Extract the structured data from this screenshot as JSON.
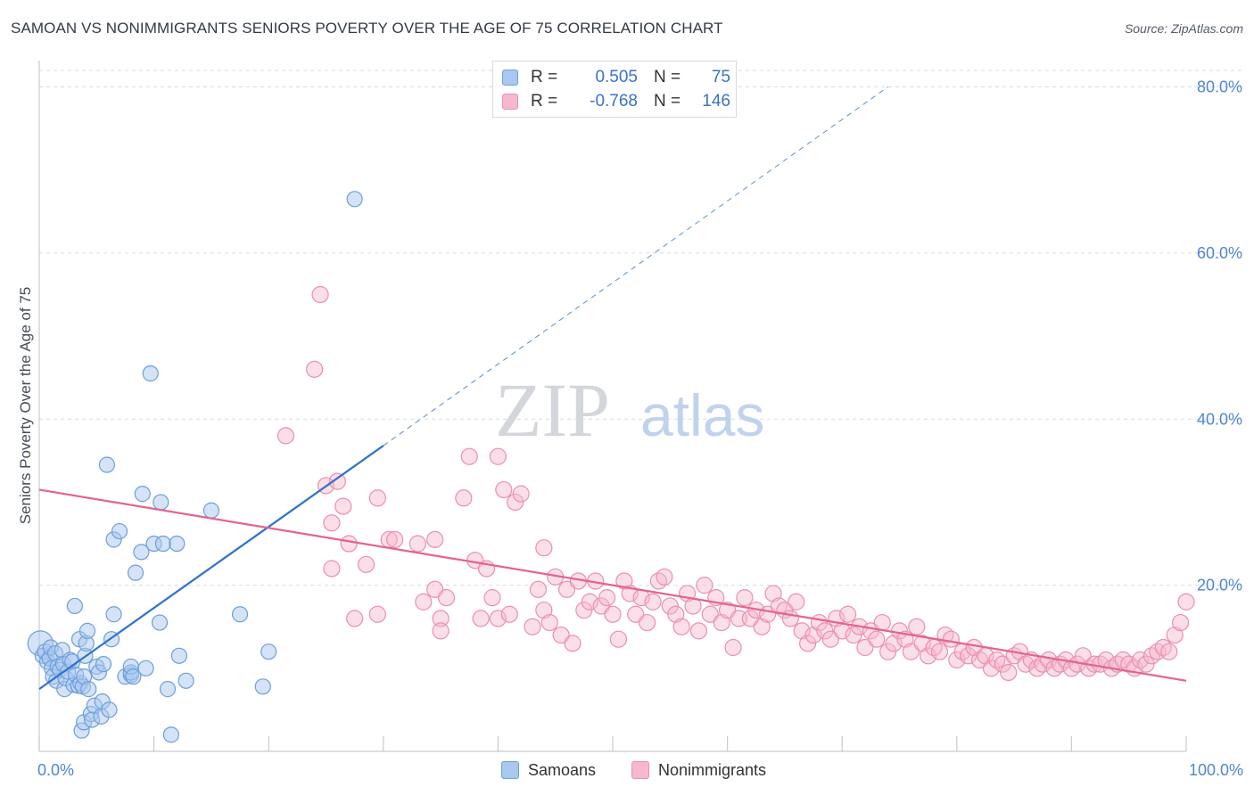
{
  "header": {
    "title": "SAMOAN VS NONIMMIGRANTS SENIORS POVERTY OVER THE AGE OF 75 CORRELATION CHART",
    "source": "Source: ZipAtlas.com"
  },
  "legend_top": {
    "rows": [
      {
        "r_label": "R =",
        "r_value": "0.505",
        "n_label": "N =",
        "n_value": "75"
      },
      {
        "r_label": "R =",
        "r_value": "-0.768",
        "n_label": "N =",
        "n_value": "146"
      }
    ]
  },
  "legend_bottom": {
    "items": [
      {
        "label": "Samoans"
      },
      {
        "label": "Nonimmigrants"
      }
    ]
  },
  "watermark": {
    "zip": "ZIP",
    "atlas": "atlas"
  },
  "colors": {
    "blue_fill": "#a9c8ee",
    "blue_stroke": "#6d9fdb",
    "blue_line": "#2f72cd",
    "pink_fill": "#f6b9cc",
    "pink_stroke": "#ec8fab",
    "pink_line": "#e4638f",
    "grid": "#d6dbe3",
    "tick_text": "#4f86cf"
  },
  "chart_data": {
    "type": "scatter",
    "ylabel": "Seniors Poverty Over the Age of 75",
    "xlim": [
      0,
      100
    ],
    "ylim": [
      0,
      80
    ],
    "x_ticks": [
      {
        "value": 0,
        "label": "0.0%"
      },
      {
        "value": 100,
        "label": "100.0%"
      }
    ],
    "y_ticks": [
      {
        "value": 20,
        "label": "20.0%"
      },
      {
        "value": 40,
        "label": "40.0%"
      },
      {
        "value": 60,
        "label": "60.0%"
      },
      {
        "value": 80,
        "label": "80.0%"
      }
    ],
    "grid": true,
    "legend_position": "top-center",
    "series": [
      {
        "name": "Samoans",
        "color": "#a9c8ee",
        "R": 0.505,
        "N": 75,
        "trend": {
          "x0": 0.0,
          "y0": 7.5,
          "x1": 30.0,
          "y1": 36.8,
          "dashed_to_x": 74.0,
          "dashed_to_y": 80.0
        },
        "points": [
          [
            0.1,
            13.0
          ],
          [
            0.3,
            11.5
          ],
          [
            0.5,
            12.0
          ],
          [
            0.7,
            10.8
          ],
          [
            0.9,
            11.2
          ],
          [
            1.0,
            12.5
          ],
          [
            1.1,
            10.0
          ],
          [
            1.2,
            9.0
          ],
          [
            1.4,
            11.8
          ],
          [
            1.5,
            8.5
          ],
          [
            1.6,
            10.2
          ],
          [
            1.8,
            9.8
          ],
          [
            2.0,
            12.2
          ],
          [
            2.1,
            10.5
          ],
          [
            2.2,
            7.5
          ],
          [
            2.3,
            8.8
          ],
          [
            2.5,
            9.6
          ],
          [
            2.7,
            11.0
          ],
          [
            2.9,
            10.8
          ],
          [
            3.0,
            8.0
          ],
          [
            3.2,
            9.2
          ],
          [
            3.4,
            7.9
          ],
          [
            3.5,
            13.5
          ],
          [
            3.6,
            8.2
          ],
          [
            3.8,
            7.8
          ],
          [
            3.9,
            9.0
          ],
          [
            4.0,
            11.5
          ],
          [
            4.1,
            13.0
          ],
          [
            4.2,
            14.5
          ],
          [
            4.3,
            7.5
          ],
          [
            3.1,
            17.5
          ],
          [
            3.7,
            2.5
          ],
          [
            3.9,
            3.5
          ],
          [
            4.5,
            4.5
          ],
          [
            4.6,
            3.8
          ],
          [
            4.8,
            5.5
          ],
          [
            5.0,
            10.2
          ],
          [
            5.2,
            9.5
          ],
          [
            5.4,
            4.2
          ],
          [
            5.5,
            6.0
          ],
          [
            5.6,
            10.5
          ],
          [
            5.9,
            34.5
          ],
          [
            6.1,
            5.0
          ],
          [
            6.3,
            13.5
          ],
          [
            6.5,
            16.5
          ],
          [
            6.5,
            25.5
          ],
          [
            7.0,
            26.5
          ],
          [
            7.5,
            9.0
          ],
          [
            8.0,
            9.2
          ],
          [
            8.0,
            9.5
          ],
          [
            8.0,
            10.2
          ],
          [
            8.2,
            9.0
          ],
          [
            8.4,
            21.5
          ],
          [
            8.9,
            24.0
          ],
          [
            9.0,
            31.0
          ],
          [
            9.3,
            10.0
          ],
          [
            9.7,
            45.5
          ],
          [
            10.0,
            25.0
          ],
          [
            10.5,
            15.5
          ],
          [
            10.6,
            30.0
          ],
          [
            10.8,
            25.0
          ],
          [
            11.2,
            7.5
          ],
          [
            11.5,
            2.0
          ],
          [
            12.0,
            25.0
          ],
          [
            12.2,
            11.5
          ],
          [
            12.8,
            8.5
          ],
          [
            15.0,
            29.0
          ],
          [
            17.5,
            16.5
          ],
          [
            19.5,
            7.8
          ],
          [
            20.0,
            12.0
          ],
          [
            27.5,
            66.5
          ]
        ]
      },
      {
        "name": "Nonimmigrants",
        "color": "#f6b9cc",
        "R": -0.768,
        "N": 146,
        "trend": {
          "x0": 0.0,
          "y0": 31.5,
          "x1": 100.0,
          "y1": 8.5
        },
        "points": [
          [
            21.5,
            38.0
          ],
          [
            24.0,
            46.0
          ],
          [
            25.0,
            32.0
          ],
          [
            25.5,
            27.5
          ],
          [
            26.0,
            32.5
          ],
          [
            26.5,
            29.5
          ],
          [
            27.0,
            25.0
          ],
          [
            27.5,
            16.0
          ],
          [
            28.5,
            22.5
          ],
          [
            29.5,
            30.5
          ],
          [
            29.5,
            16.5
          ],
          [
            30.5,
            25.5
          ],
          [
            31.0,
            25.5
          ],
          [
            33.0,
            25.0
          ],
          [
            33.5,
            18.0
          ],
          [
            34.5,
            25.5
          ],
          [
            34.5,
            19.5
          ],
          [
            35.0,
            16.0
          ],
          [
            35.0,
            14.5
          ],
          [
            35.5,
            18.5
          ],
          [
            37.0,
            30.5
          ],
          [
            37.5,
            35.5
          ],
          [
            38.0,
            23.0
          ],
          [
            38.5,
            16.0
          ],
          [
            39.0,
            22.0
          ],
          [
            39.5,
            18.5
          ],
          [
            40.0,
            35.5
          ],
          [
            40.0,
            16.0
          ],
          [
            40.5,
            31.5
          ],
          [
            41.0,
            16.5
          ],
          [
            41.5,
            30.0
          ],
          [
            42.0,
            31.0
          ],
          [
            43.0,
            15.0
          ],
          [
            43.5,
            19.5
          ],
          [
            44.0,
            17.0
          ],
          [
            44.0,
            24.5
          ],
          [
            44.5,
            15.5
          ],
          [
            45.0,
            21.0
          ],
          [
            45.5,
            14.0
          ],
          [
            46.0,
            19.5
          ],
          [
            46.5,
            13.0
          ],
          [
            47.0,
            20.5
          ],
          [
            47.5,
            17.0
          ],
          [
            48.0,
            18.0
          ],
          [
            48.5,
            20.5
          ],
          [
            49.0,
            17.5
          ],
          [
            49.5,
            18.5
          ],
          [
            50.0,
            16.5
          ],
          [
            50.5,
            13.5
          ],
          [
            51.0,
            20.5
          ],
          [
            51.5,
            19.0
          ],
          [
            52.0,
            16.5
          ],
          [
            52.5,
            18.5
          ],
          [
            53.0,
            15.5
          ],
          [
            53.5,
            18.0
          ],
          [
            54.0,
            20.5
          ],
          [
            54.5,
            21.0
          ],
          [
            55.0,
            17.5
          ],
          [
            55.5,
            16.5
          ],
          [
            56.0,
            15.0
          ],
          [
            56.5,
            19.0
          ],
          [
            57.0,
            17.5
          ],
          [
            57.5,
            14.5
          ],
          [
            58.0,
            20.0
          ],
          [
            58.5,
            16.5
          ],
          [
            59.0,
            18.5
          ],
          [
            59.5,
            15.5
          ],
          [
            60.0,
            17.0
          ],
          [
            60.5,
            12.5
          ],
          [
            61.0,
            16.0
          ],
          [
            61.5,
            18.5
          ],
          [
            62.0,
            16.0
          ],
          [
            62.5,
            17.0
          ],
          [
            63.0,
            15.0
          ],
          [
            63.5,
            16.5
          ],
          [
            64.0,
            19.0
          ],
          [
            64.5,
            17.5
          ],
          [
            65.0,
            17.0
          ],
          [
            65.5,
            16.0
          ],
          [
            66.0,
            18.0
          ],
          [
            66.5,
            14.5
          ],
          [
            67.0,
            13.0
          ],
          [
            67.5,
            14.0
          ],
          [
            68.0,
            15.5
          ],
          [
            68.5,
            14.5
          ],
          [
            69.0,
            13.5
          ],
          [
            69.5,
            16.0
          ],
          [
            70.0,
            14.5
          ],
          [
            70.5,
            16.5
          ],
          [
            71.0,
            14.0
          ],
          [
            71.5,
            15.0
          ],
          [
            72.0,
            12.5
          ],
          [
            72.5,
            14.5
          ],
          [
            73.0,
            13.5
          ],
          [
            73.5,
            15.5
          ],
          [
            74.0,
            12.0
          ],
          [
            74.5,
            13.0
          ],
          [
            75.0,
            14.5
          ],
          [
            75.5,
            13.5
          ],
          [
            76.0,
            12.0
          ],
          [
            76.5,
            15.0
          ],
          [
            77.0,
            13.0
          ],
          [
            77.5,
            11.5
          ],
          [
            78.0,
            12.5
          ],
          [
            78.5,
            12.0
          ],
          [
            79.0,
            14.0
          ],
          [
            79.5,
            13.5
          ],
          [
            80.0,
            11.0
          ],
          [
            80.5,
            12.0
          ],
          [
            81.0,
            11.5
          ],
          [
            81.5,
            12.5
          ],
          [
            82.0,
            11.0
          ],
          [
            82.5,
            11.5
          ],
          [
            83.0,
            10.0
          ],
          [
            83.5,
            11.0
          ],
          [
            84.0,
            10.5
          ],
          [
            84.5,
            9.5
          ],
          [
            85.0,
            11.5
          ],
          [
            85.5,
            12.0
          ],
          [
            86.0,
            10.5
          ],
          [
            86.5,
            11.0
          ],
          [
            87.0,
            10.0
          ],
          [
            87.5,
            10.5
          ],
          [
            88.0,
            11.0
          ],
          [
            88.5,
            10.0
          ],
          [
            89.0,
            10.5
          ],
          [
            89.5,
            11.0
          ],
          [
            90.0,
            10.0
          ],
          [
            90.5,
            10.5
          ],
          [
            91.0,
            11.5
          ],
          [
            91.5,
            10.0
          ],
          [
            92.0,
            10.5
          ],
          [
            92.5,
            10.5
          ],
          [
            93.0,
            11.0
          ],
          [
            93.5,
            10.0
          ],
          [
            94.0,
            10.5
          ],
          [
            94.5,
            11.0
          ],
          [
            95.0,
            10.5
          ],
          [
            95.5,
            10.0
          ],
          [
            96.0,
            11.0
          ],
          [
            96.5,
            10.5
          ],
          [
            97.0,
            11.5
          ],
          [
            97.5,
            12.0
          ],
          [
            98.0,
            12.5
          ],
          [
            98.5,
            12.0
          ],
          [
            99.0,
            14.0
          ],
          [
            99.5,
            15.5
          ],
          [
            100.0,
            18.0
          ],
          [
            24.5,
            55.0
          ],
          [
            25.5,
            22.0
          ]
        ]
      }
    ]
  }
}
